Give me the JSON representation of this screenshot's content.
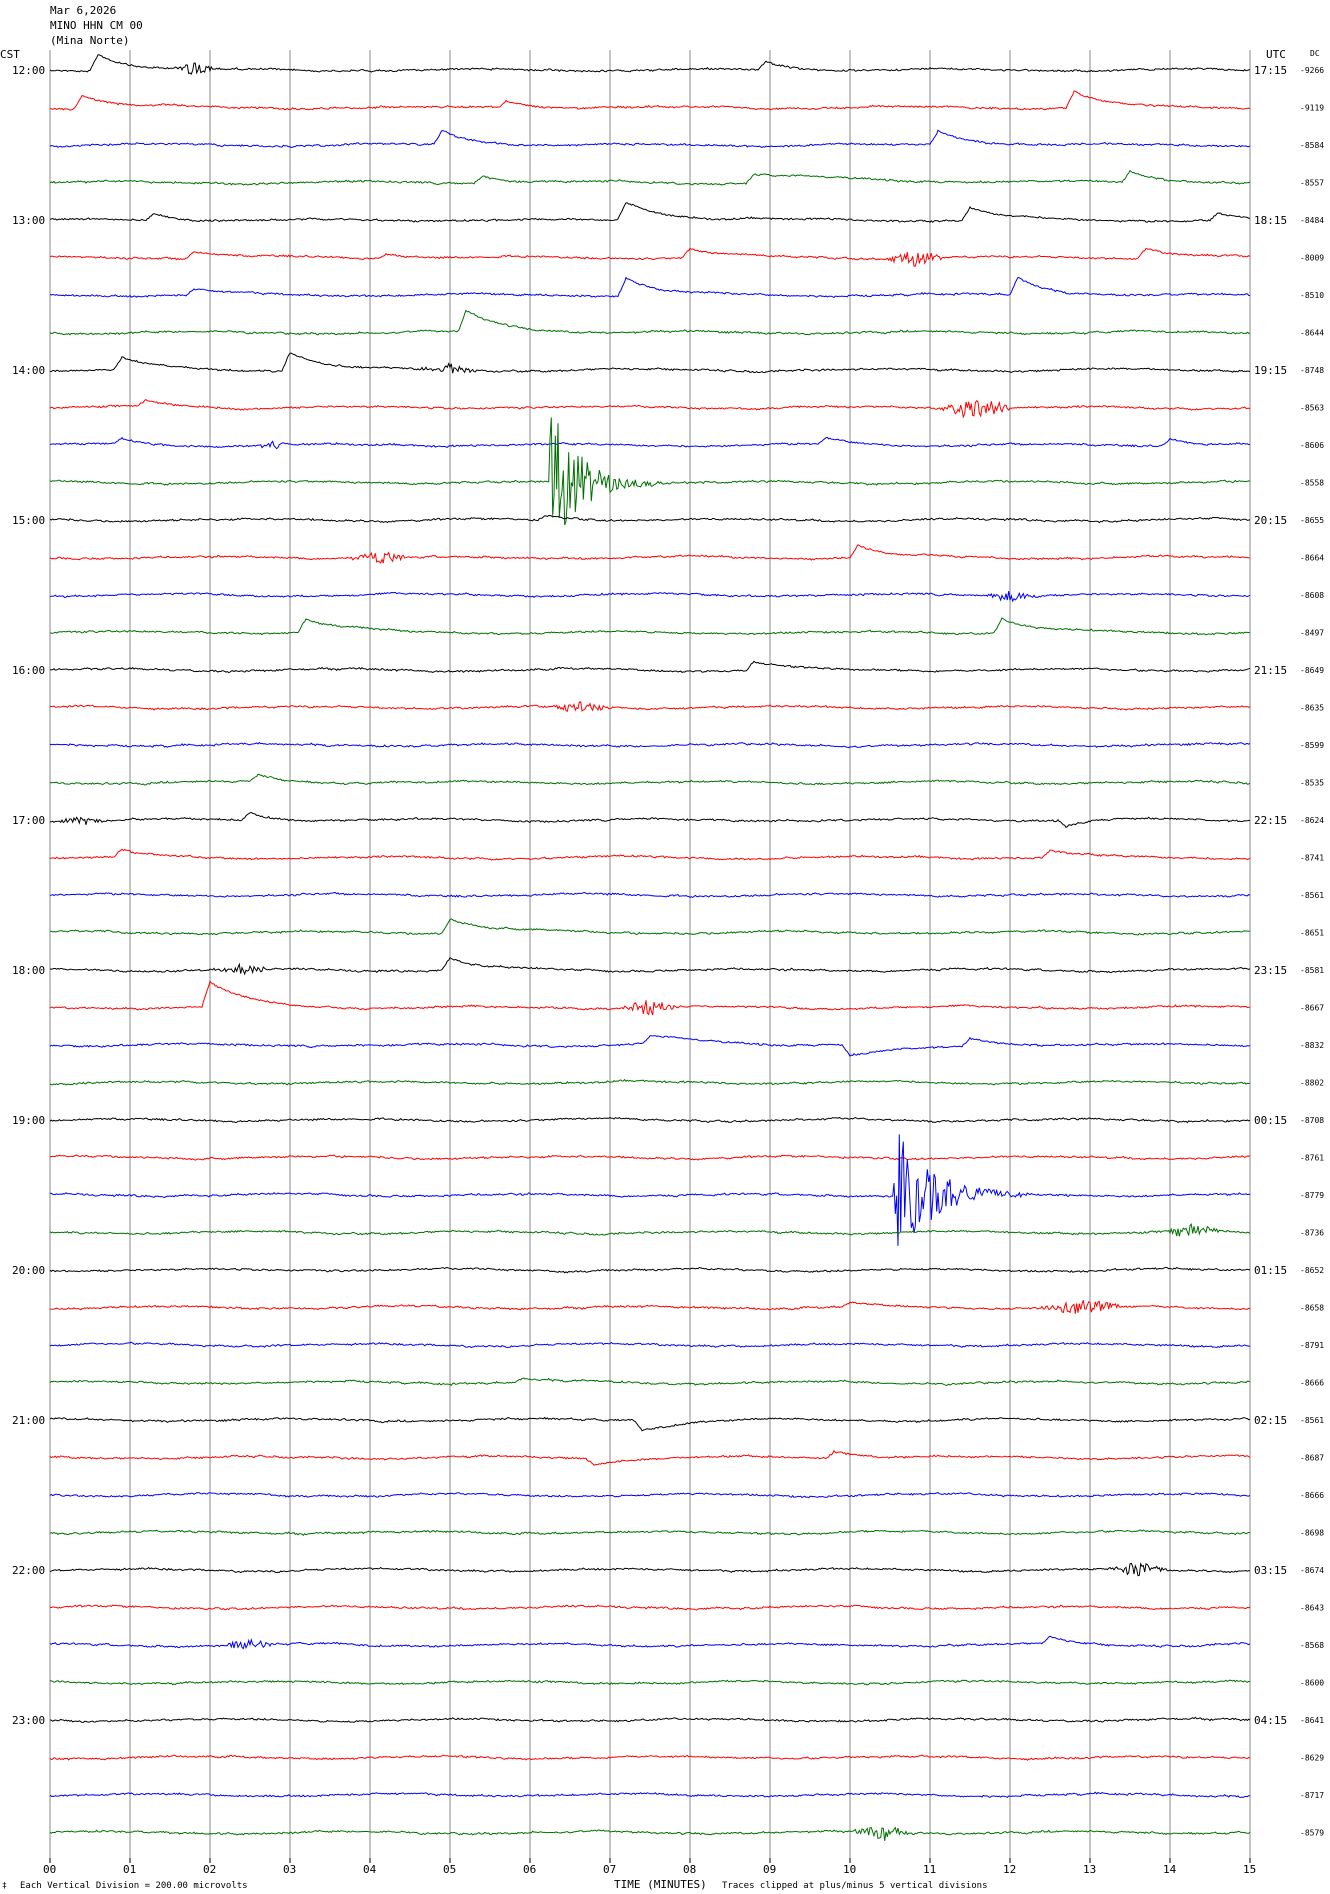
{
  "header": {
    "date": "Mar 6,2026",
    "station": "MINO HHN CM 00",
    "location": "(Mina Norte)"
  },
  "left_axis_label": "CST",
  "right_axis_label": "UTC",
  "dc_label": "DC",
  "footer": {
    "scale_note": "Each Vertical Division =  200.00 microvolts",
    "xlabel": "TIME (MINUTES)",
    "clip_note": "Traces clipped at plus/minus 5 vertical divisions",
    "corner_glyph": "‡"
  },
  "colors": {
    "cycle": [
      "#000000",
      "#ff0000",
      "#0000ff",
      "#007000"
    ],
    "grid": "#8a8a8a"
  },
  "chart_data": {
    "type": "line",
    "title": "MINO HHN CM 00 (Mina Norte) helicorder, Mar 6,2026",
    "xlabel": "TIME (MINUTES)",
    "xlim": [
      0,
      15
    ],
    "x_ticks": [
      "00",
      "01",
      "02",
      "03",
      "04",
      "05",
      "06",
      "07",
      "08",
      "09",
      "10",
      "11",
      "12",
      "13",
      "14",
      "15"
    ],
    "minutes_per_line": 15,
    "left_time_labels": [
      "12:00",
      "13:00",
      "14:00",
      "15:00",
      "16:00",
      "17:00",
      "18:00",
      "19:00",
      "20:00",
      "21:00",
      "22:00",
      "23:00"
    ],
    "right_time_labels": [
      "17:15",
      "18:15",
      "19:15",
      "20:15",
      "21:15",
      "22:15",
      "23:15",
      "00:15",
      "01:15",
      "02:15",
      "03:15",
      "04:15"
    ],
    "dc_offsets": [
      "-9266",
      "-9119",
      "-8584",
      "-8557",
      "-8484",
      "-8009",
      "-8510",
      "-8644",
      "-8748",
      "-8563",
      "-8606",
      "-8558",
      "-8655",
      "-8664",
      "-8608",
      "-8497",
      "-8649",
      "-8635",
      "-8599",
      "-8535",
      "-8624",
      "-8741",
      "-8561",
      "-8651",
      "-8581",
      "-8667",
      "-8832",
      "-8802",
      "-8708",
      "-8761",
      "-8779",
      "-8736",
      "-8652",
      "-8658",
      "-8791",
      "-8666",
      "-8561",
      "-8687",
      "-8666",
      "-8698",
      "-8674",
      "-8643",
      "-8568",
      "-8600",
      "-8641",
      "-8629",
      "-8717",
      "-8579"
    ],
    "trace_count": 48,
    "events": [
      {
        "trace": 0,
        "t": 0.6,
        "amp": 1.2,
        "dur": 0.6,
        "kind": "pulse"
      },
      {
        "trace": 0,
        "t": 1.8,
        "amp": 0.5,
        "dur": 0.3,
        "kind": "burst"
      },
      {
        "trace": 0,
        "t": 8.95,
        "amp": 0.6,
        "dur": 0.5,
        "kind": "pulse"
      },
      {
        "trace": 1,
        "t": 0.4,
        "amp": 0.9,
        "dur": 0.7,
        "kind": "pulse"
      },
      {
        "trace": 1,
        "t": 5.7,
        "amp": 0.5,
        "dur": 0.6,
        "kind": "pulse"
      },
      {
        "trace": 1,
        "t": 12.8,
        "amp": 1.2,
        "dur": 0.6,
        "kind": "pulse"
      },
      {
        "trace": 2,
        "t": 4.9,
        "amp": 1.0,
        "dur": 0.6,
        "kind": "pulse"
      },
      {
        "trace": 2,
        "t": 11.1,
        "amp": 1.0,
        "dur": 0.7,
        "kind": "pulse"
      },
      {
        "trace": 3,
        "t": 5.4,
        "amp": 0.5,
        "dur": 0.6,
        "kind": "pulse"
      },
      {
        "trace": 3,
        "t": 8.8,
        "amp": 0.6,
        "dur": 2.0,
        "kind": "pulse"
      },
      {
        "trace": 3,
        "t": 13.5,
        "amp": 0.8,
        "dur": 0.6,
        "kind": "pulse"
      },
      {
        "trace": 4,
        "t": 1.3,
        "amp": 0.5,
        "dur": 0.5,
        "kind": "pulse"
      },
      {
        "trace": 4,
        "t": 7.2,
        "amp": 1.3,
        "dur": 0.8,
        "kind": "pulse"
      },
      {
        "trace": 4,
        "t": 11.5,
        "amp": 0.9,
        "dur": 0.6,
        "kind": "pulse"
      },
      {
        "trace": 4,
        "t": 14.6,
        "amp": 0.5,
        "dur": 0.4,
        "kind": "pulse"
      },
      {
        "trace": 5,
        "t": 1.8,
        "amp": 0.5,
        "dur": 0.6,
        "kind": "pulse"
      },
      {
        "trace": 5,
        "t": 4.2,
        "amp": 0.3,
        "dur": 0.5,
        "kind": "pulse"
      },
      {
        "trace": 5,
        "t": 8.0,
        "amp": 0.6,
        "dur": 0.6,
        "kind": "pulse"
      },
      {
        "trace": 5,
        "t": 10.8,
        "amp": 0.6,
        "dur": 0.4,
        "kind": "burst"
      },
      {
        "trace": 5,
        "t": 13.7,
        "amp": 0.7,
        "dur": 0.6,
        "kind": "pulse"
      },
      {
        "trace": 6,
        "t": 1.8,
        "amp": 0.4,
        "dur": 0.6,
        "kind": "pulse"
      },
      {
        "trace": 6,
        "t": 7.2,
        "amp": 1.3,
        "dur": 0.6,
        "kind": "pulse"
      },
      {
        "trace": 6,
        "t": 12.1,
        "amp": 1.3,
        "dur": 0.6,
        "kind": "pulse"
      },
      {
        "trace": 7,
        "t": 5.2,
        "amp": 1.5,
        "dur": 0.8,
        "kind": "pulse"
      },
      {
        "trace": 8,
        "t": 0.9,
        "amp": 0.9,
        "dur": 0.6,
        "kind": "pulse"
      },
      {
        "trace": 8,
        "t": 3.0,
        "amp": 1.3,
        "dur": 0.7,
        "kind": "pulse"
      },
      {
        "trace": 8,
        "t": 5.0,
        "amp": 0.4,
        "dur": 0.4,
        "kind": "burst"
      },
      {
        "trace": 9,
        "t": 1.2,
        "amp": 0.5,
        "dur": 0.5,
        "kind": "pulse"
      },
      {
        "trace": 9,
        "t": 11.6,
        "amp": 0.9,
        "dur": 0.5,
        "kind": "burst"
      },
      {
        "trace": 10,
        "t": 0.9,
        "amp": 0.4,
        "dur": 0.4,
        "kind": "pulse"
      },
      {
        "trace": 10,
        "t": 2.8,
        "amp": 0.3,
        "dur": 0.3,
        "kind": "burst"
      },
      {
        "trace": 10,
        "t": 9.7,
        "amp": 0.5,
        "dur": 0.5,
        "kind": "pulse"
      },
      {
        "trace": 10,
        "t": 14.0,
        "amp": 0.5,
        "dur": 0.5,
        "kind": "pulse"
      },
      {
        "trace": 11,
        "t": 6.25,
        "amp": 5.0,
        "dur": 1.0,
        "kind": "quake"
      },
      {
        "trace": 12,
        "t": 6.2,
        "amp": 0.3,
        "dur": 0.8,
        "kind": "pulse"
      },
      {
        "trace": 13,
        "t": 4.1,
        "amp": 0.6,
        "dur": 0.4,
        "kind": "burst"
      },
      {
        "trace": 13,
        "t": 10.1,
        "amp": 0.9,
        "dur": 0.5,
        "kind": "pulse"
      },
      {
        "trace": 14,
        "t": 12.0,
        "amp": 0.4,
        "dur": 0.4,
        "kind": "burst"
      },
      {
        "trace": 15,
        "t": 3.2,
        "amp": 1.0,
        "dur": 0.8,
        "kind": "pulse"
      },
      {
        "trace": 15,
        "t": 11.9,
        "amp": 1.0,
        "dur": 0.7,
        "kind": "pulse"
      },
      {
        "trace": 16,
        "t": 8.8,
        "amp": 0.6,
        "dur": 0.6,
        "kind": "pulse"
      },
      {
        "trace": 17,
        "t": 6.6,
        "amp": 0.4,
        "dur": 0.5,
        "kind": "burst"
      },
      {
        "trace": 19,
        "t": 2.6,
        "amp": 0.5,
        "dur": 0.5,
        "kind": "pulse"
      },
      {
        "trace": 20,
        "t": 0.4,
        "amp": 0.3,
        "dur": 0.4,
        "kind": "burst"
      },
      {
        "trace": 20,
        "t": 2.5,
        "amp": 0.5,
        "dur": 0.4,
        "kind": "pulse"
      },
      {
        "trace": 20,
        "t": 12.7,
        "amp": -0.4,
        "dur": 0.4,
        "kind": "pulse"
      },
      {
        "trace": 21,
        "t": 0.9,
        "amp": 0.5,
        "dur": 0.4,
        "kind": "pulse"
      },
      {
        "trace": 21,
        "t": 12.5,
        "amp": 0.5,
        "dur": 0.6,
        "kind": "pulse"
      },
      {
        "trace": 23,
        "t": 5.0,
        "amp": 1.0,
        "dur": 0.8,
        "kind": "pulse"
      },
      {
        "trace": 24,
        "t": 2.4,
        "amp": 0.4,
        "dur": 0.4,
        "kind": "burst"
      },
      {
        "trace": 24,
        "t": 5.0,
        "amp": 0.8,
        "dur": 0.6,
        "kind": "pulse"
      },
      {
        "trace": 25,
        "t": 2.0,
        "amp": 1.8,
        "dur": 0.7,
        "kind": "pulse"
      },
      {
        "trace": 25,
        "t": 7.5,
        "amp": 0.6,
        "dur": 0.4,
        "kind": "burst"
      },
      {
        "trace": 26,
        "t": 7.5,
        "amp": 0.6,
        "dur": 1.2,
        "kind": "pulse"
      },
      {
        "trace": 26,
        "t": 10.0,
        "amp": -0.8,
        "dur": 1.4,
        "kind": "pulse"
      },
      {
        "trace": 26,
        "t": 11.5,
        "amp": 0.6,
        "dur": 0.8,
        "kind": "pulse"
      },
      {
        "trace": 30,
        "t": 10.55,
        "amp": 5.0,
        "dur": 1.2,
        "kind": "quake"
      },
      {
        "trace": 31,
        "t": 14.3,
        "amp": 0.6,
        "dur": 0.4,
        "kind": "burst"
      },
      {
        "trace": 33,
        "t": 12.9,
        "amp": 0.6,
        "dur": 0.6,
        "kind": "burst"
      },
      {
        "trace": 33,
        "t": 10.0,
        "amp": 0.3,
        "dur": 0.5,
        "kind": "pulse"
      },
      {
        "trace": 35,
        "t": 5.9,
        "amp": 0.3,
        "dur": 0.5,
        "kind": "pulse"
      },
      {
        "trace": 36,
        "t": 7.4,
        "amp": -0.7,
        "dur": 0.7,
        "kind": "pulse"
      },
      {
        "trace": 37,
        "t": 6.8,
        "amp": -0.5,
        "dur": 0.6,
        "kind": "pulse"
      },
      {
        "trace": 37,
        "t": 9.8,
        "amp": 0.5,
        "dur": 0.6,
        "kind": "pulse"
      },
      {
        "trace": 40,
        "t": 13.6,
        "amp": 0.6,
        "dur": 0.4,
        "kind": "burst"
      },
      {
        "trace": 42,
        "t": 2.5,
        "amp": 0.4,
        "dur": 0.4,
        "kind": "burst"
      },
      {
        "trace": 42,
        "t": 12.5,
        "amp": 0.5,
        "dur": 0.6,
        "kind": "pulse"
      },
      {
        "trace": 47,
        "t": 10.4,
        "amp": 0.6,
        "dur": 0.4,
        "kind": "burst"
      }
    ]
  }
}
